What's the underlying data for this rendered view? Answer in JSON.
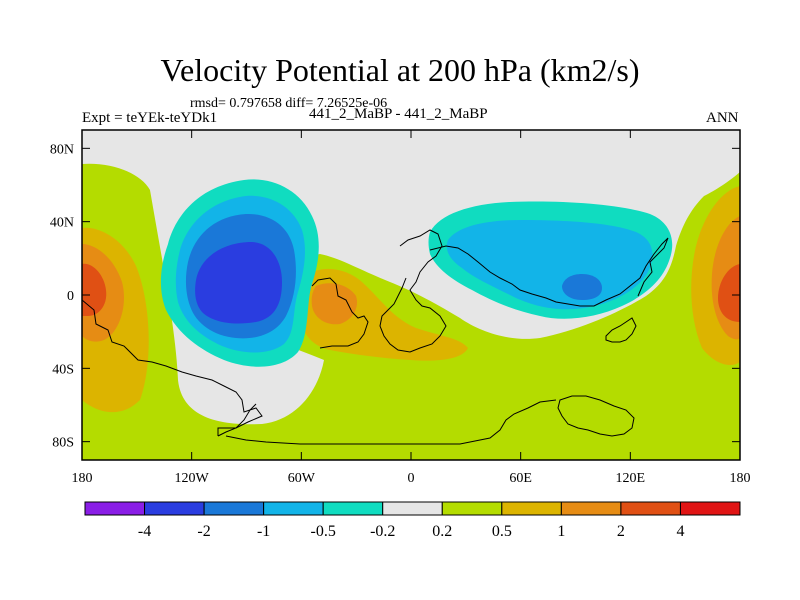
{
  "header": {
    "title": "Velocity Potential at 200 hPa (km2/s)",
    "stats": "rmsd= 0.797658 diff= 7.26525e-06",
    "experiment": "Expt = teYEk-teYDk1",
    "case": "441_2_MaBP - 441_2_MaBP",
    "season": "ANN"
  },
  "chart_data": {
    "type": "contour-map",
    "title": "Velocity Potential at 200 hPa (km2/s)",
    "field": "velocity potential, 200 hPa",
    "units": "km2/s",
    "x_axis": {
      "range": [
        -180,
        180
      ],
      "ticks": [
        -180,
        -120,
        -60,
        0,
        60,
        120,
        180
      ],
      "tick_labels": [
        "180",
        "120W",
        "60W",
        "0",
        "60E",
        "120E",
        "180"
      ]
    },
    "y_axis": {
      "range": [
        -90,
        90
      ],
      "ticks": [
        80,
        40,
        0,
        -40,
        -80
      ],
      "tick_labels": [
        "80N",
        "40N",
        "0",
        "40S",
        "80S"
      ]
    },
    "colorbar": {
      "levels": [
        -4,
        -2,
        -1,
        -0.5,
        -0.2,
        0.2,
        0.5,
        1,
        2,
        4
      ],
      "labels": [
        "-4",
        "-2",
        "-1",
        "-0.5",
        "-0.2",
        "0.2",
        "0.5",
        "1",
        "2",
        "4"
      ],
      "colors": [
        "#8a1ee6",
        "#2a3de0",
        "#1a78d8",
        "#12b4e8",
        "#10dcc0",
        "#e6e6e6",
        "#b4dc00",
        "#dcb400",
        "#e68c14",
        "#e05014",
        "#e01414"
      ]
    },
    "features": [
      {
        "name": "negative-center-east-pacific",
        "lon": -93,
        "lat": 5,
        "min_class": "-4 to -2"
      },
      {
        "name": "negative-center-indian-ocean",
        "lon": 93,
        "lat": 5,
        "min_class": "-1 to -0.5"
      },
      {
        "name": "positive-center-dateline",
        "lon": 180,
        "lat": 0,
        "max_class": "2 to 4"
      },
      {
        "name": "positive-center-south-america",
        "lon": -40,
        "lat": -5,
        "max_class": "1 to 2"
      }
    ]
  }
}
